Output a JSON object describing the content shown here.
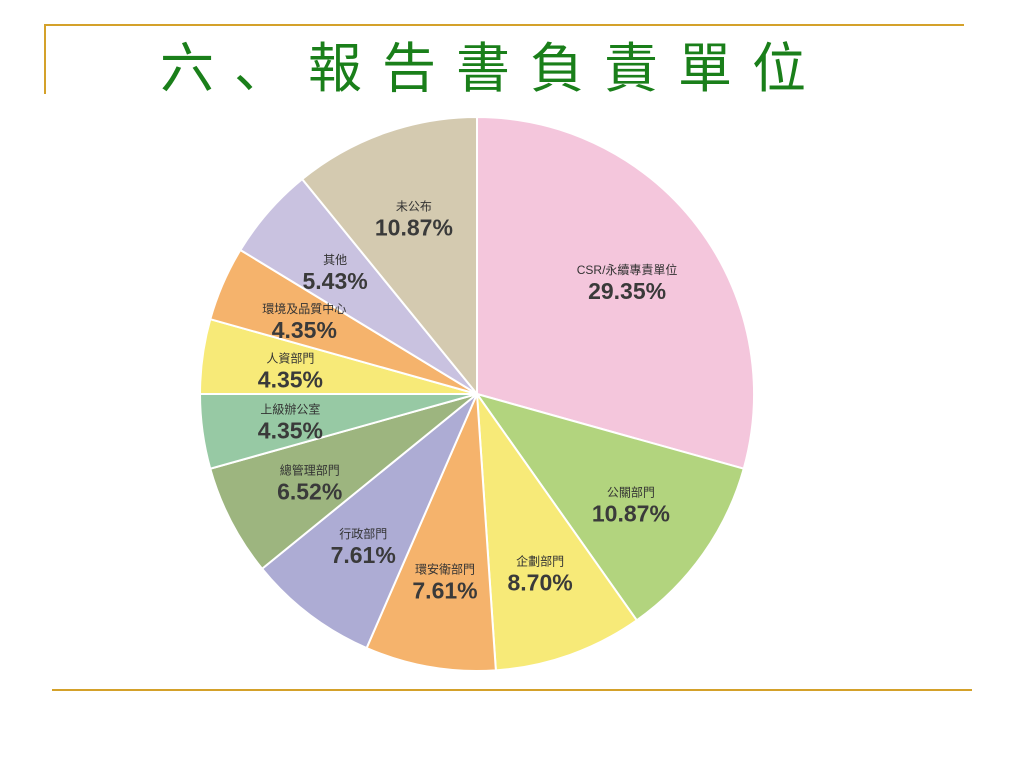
{
  "slide": {
    "title": "六、報告書負責單位"
  },
  "colors": {
    "rule": "#d4a12a",
    "title": "#1a7f1a"
  },
  "chart_data": {
    "type": "pie",
    "title": "",
    "start_angle_deg": 0,
    "direction": "clockwise",
    "slices": [
      {
        "label": "CSR/永續專責單位",
        "value": 29.35,
        "display": "29.35%",
        "color": "#f4c6dc"
      },
      {
        "label": "公關部門",
        "value": 10.87,
        "display": "10.87%",
        "color": "#b2d47e"
      },
      {
        "label": "企劃部門",
        "value": 8.7,
        "display": "8.70%",
        "color": "#f7ea78"
      },
      {
        "label": "環安衛部門",
        "value": 7.61,
        "display": "7.61%",
        "color": "#f5b36c"
      },
      {
        "label": "行政部門",
        "value": 7.61,
        "display": "7.61%",
        "color": "#adacd4"
      },
      {
        "label": "總管理部門",
        "value": 6.52,
        "display": "6.52%",
        "color": "#9db57f"
      },
      {
        "label": "上級辦公室",
        "value": 4.35,
        "display": "4.35%",
        "color": "#97c9a4"
      },
      {
        "label": "人資部門",
        "value": 4.35,
        "display": "4.35%",
        "color": "#f7ea78"
      },
      {
        "label": "環境及品質中心",
        "value": 4.35,
        "display": "4.35%",
        "color": "#f5b36c"
      },
      {
        "label": "其他",
        "value": 5.43,
        "display": "5.43%",
        "color": "#c9c2e0"
      },
      {
        "label": "未公布",
        "value": 10.87,
        "display": "10.87%",
        "color": "#d4cab0"
      }
    ]
  }
}
